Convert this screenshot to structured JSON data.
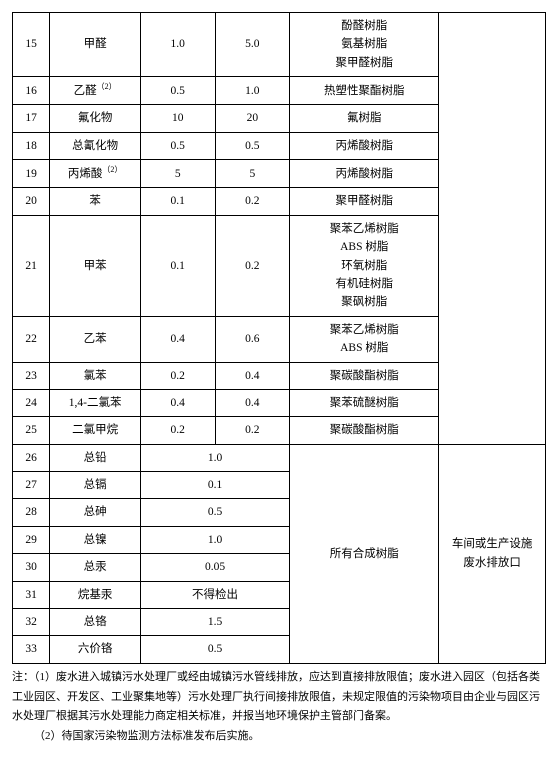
{
  "rows": [
    {
      "n": "15",
      "name": "甲醛",
      "v1": "1.0",
      "v2": "5.0",
      "prod": [
        "酚醛树脂",
        "氨基树脂",
        "聚甲醛树脂"
      ]
    },
    {
      "n": "16",
      "name": "乙醛",
      "sup": "（2）",
      "v1": "0.5",
      "v2": "1.0",
      "prod": [
        "热塑性聚酯树脂"
      ]
    },
    {
      "n": "17",
      "name": "氟化物",
      "v1": "10",
      "v2": "20",
      "prod": [
        "氟树脂"
      ]
    },
    {
      "n": "18",
      "name": "总氰化物",
      "v1": "0.5",
      "v2": "0.5",
      "prod": [
        "丙烯酸树脂"
      ]
    },
    {
      "n": "19",
      "name": "丙烯酸",
      "sup": "（2）",
      "v1": "5",
      "v2": "5",
      "prod": [
        "丙烯酸树脂"
      ]
    },
    {
      "n": "20",
      "name": "苯",
      "v1": "0.1",
      "v2": "0.2",
      "prod": [
        "聚甲醛树脂"
      ]
    },
    {
      "n": "21",
      "name": "甲苯",
      "v1": "0.1",
      "v2": "0.2",
      "prod": [
        "聚苯乙烯树脂",
        "ABS 树脂",
        "环氧树脂",
        "有机硅树脂",
        "聚砜树脂"
      ]
    },
    {
      "n": "22",
      "name": "乙苯",
      "v1": "0.4",
      "v2": "0.6",
      "prod": [
        "聚苯乙烯树脂",
        "ABS 树脂"
      ]
    },
    {
      "n": "23",
      "name": "氯苯",
      "v1": "0.2",
      "v2": "0.4",
      "prod": [
        "聚碳酸酯树脂"
      ]
    },
    {
      "n": "24",
      "name": "1,4-二氯苯",
      "v1": "0.4",
      "v2": "0.4",
      "prod": [
        "聚苯硫醚树脂"
      ]
    },
    {
      "n": "25",
      "name": "二氯甲烷",
      "v1": "0.2",
      "v2": "0.2",
      "prod": [
        "聚碳酸酯树脂"
      ]
    }
  ],
  "merged": [
    {
      "n": "26",
      "name": "总铅",
      "val": "1.0"
    },
    {
      "n": "27",
      "name": "总镉",
      "val": "0.1"
    },
    {
      "n": "28",
      "name": "总砷",
      "val": "0.5"
    },
    {
      "n": "29",
      "name": "总镍",
      "val": "1.0"
    },
    {
      "n": "30",
      "name": "总汞",
      "val": "0.05"
    },
    {
      "n": "31",
      "name": "烷基汞",
      "val": "不得检出"
    },
    {
      "n": "32",
      "name": "总铬",
      "val": "1.5"
    },
    {
      "n": "33",
      "name": "六价铬",
      "val": "0.5"
    }
  ],
  "merged_prod": "所有合成树脂",
  "merged_loc": "车间或生产设施\n废水排放口",
  "notes": {
    "n1": "注：（1）废水进入城镇污水处理厂或经由城镇污水管线排放，应达到直接排放限值；废水进入园区（包括各类工业园区、开发区、工业聚集地等）污水处理厂执行间接排放限值，未规定限值的污染物项目由企业与园区污水处理厂根据其污水处理能力商定相关标准，并报当地环境保护主管部门备案。",
    "n2": "（2）待国家污染物监测方法标准发布后实施。"
  }
}
